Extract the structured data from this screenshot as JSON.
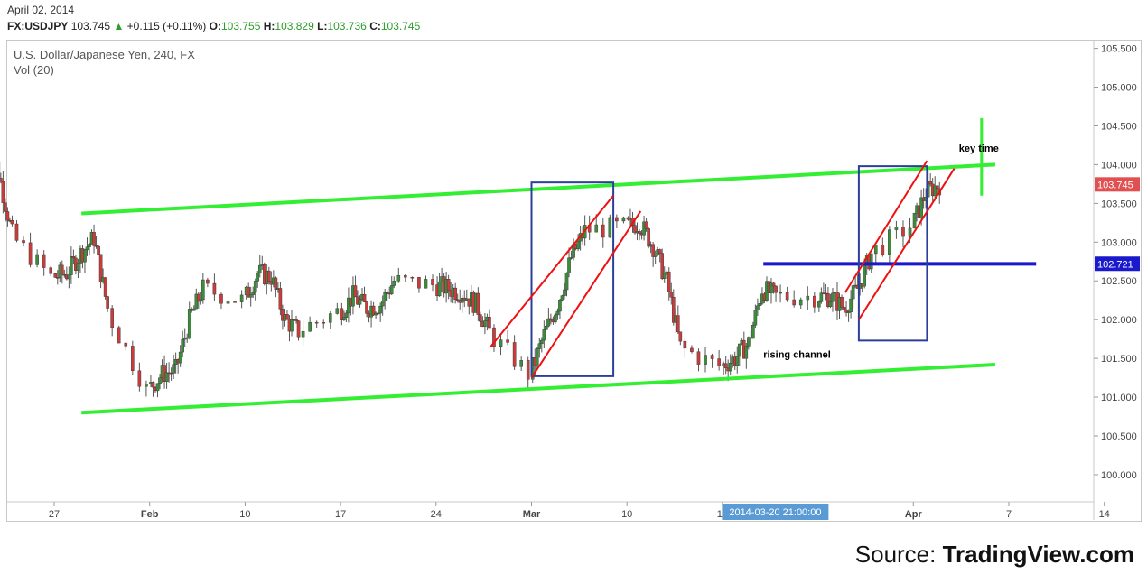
{
  "header": {
    "date": "April 02, 2014",
    "symbol": "FX:USDJPY",
    "last": "103.745",
    "change": "+0.115 (+0.11%)",
    "open_label": "O:",
    "open": "103.755",
    "high_label": "H:",
    "high": "103.829",
    "low_label": "L:",
    "low": "103.736",
    "close_label": "C:",
    "close": "103.745"
  },
  "chart_data": {
    "type": "candlestick",
    "title": "U.S. Dollar/Japanese Yen, 240, FX",
    "subtitle": "Vol (20)",
    "ylim": [
      99.65,
      105.6
    ],
    "y_ticks": [
      "105.500",
      "105.000",
      "104.500",
      "104.000",
      "103.500",
      "103.000",
      "102.500",
      "102.000",
      "101.500",
      "101.000",
      "100.500",
      "100.000"
    ],
    "x_ticks": [
      "27",
      "Feb",
      "10",
      "17",
      "24",
      "Mar",
      "10",
      "17",
      "Apr",
      "7",
      "14"
    ],
    "crosshair_date": "2014-03-20 21:00:00",
    "price_labels": [
      {
        "value": 103.745,
        "text": "103.745",
        "color": "#e05050"
      },
      {
        "value": 102.721,
        "text": "102.721",
        "color": "#1a1acc"
      }
    ],
    "close_path": [
      [
        "2014-01-22",
        104.45
      ],
      [
        "2014-01-23",
        103.9
      ],
      [
        "2014-01-24",
        103.1
      ],
      [
        "2014-01-27",
        102.55
      ],
      [
        "2014-01-28",
        102.6
      ],
      [
        "2014-01-29",
        102.85
      ],
      [
        "2014-01-30",
        103.05
      ],
      [
        "2014-01-31",
        102.15
      ],
      [
        "2014-02-03",
        101.1
      ],
      [
        "2014-02-04",
        101.3
      ],
      [
        "2014-02-05",
        101.35
      ],
      [
        "2014-02-06",
        102.0
      ],
      [
        "2014-02-07",
        102.4
      ],
      [
        "2014-02-10",
        102.25
      ],
      [
        "2014-02-11",
        102.6
      ],
      [
        "2014-02-12",
        102.55
      ],
      [
        "2014-02-13",
        102.0
      ],
      [
        "2014-02-14",
        101.85
      ],
      [
        "2014-02-17",
        102.1
      ],
      [
        "2014-02-18",
        102.3
      ],
      [
        "2014-02-19",
        102.15
      ],
      [
        "2014-02-20",
        102.2
      ],
      [
        "2014-02-21",
        102.5
      ],
      [
        "2014-02-24",
        102.45
      ],
      [
        "2014-02-25",
        102.4
      ],
      [
        "2014-02-26",
        102.35
      ],
      [
        "2014-02-27",
        102.2
      ],
      [
        "2014-02-28",
        101.85
      ],
      [
        "2014-03-03",
        101.3
      ],
      [
        "2014-03-04",
        101.8
      ],
      [
        "2014-03-05",
        102.2
      ],
      [
        "2014-03-06",
        102.8
      ],
      [
        "2014-03-07",
        103.15
      ],
      [
        "2014-03-10",
        103.2
      ],
      [
        "2014-03-11",
        103.25
      ],
      [
        "2014-03-12",
        102.95
      ],
      [
        "2014-03-13",
        102.5
      ],
      [
        "2014-03-14",
        101.65
      ],
      [
        "2014-03-17",
        101.4
      ],
      [
        "2014-03-18",
        101.5
      ],
      [
        "2014-03-19",
        101.7
      ],
      [
        "2014-03-20",
        102.4
      ],
      [
        "2014-03-21",
        102.3
      ],
      [
        "2014-03-24",
        102.3
      ],
      [
        "2014-03-25",
        102.3
      ],
      [
        "2014-03-26",
        102.15
      ],
      [
        "2014-03-27",
        102.4
      ],
      [
        "2014-03-28",
        102.85
      ],
      [
        "2014-03-31",
        103.2
      ],
      [
        "2014-04-01",
        103.65
      ],
      [
        "2014-04-02",
        103.745
      ]
    ],
    "annotations": [
      {
        "kind": "line",
        "color": "#33ee33",
        "from": [
          "2014-01-29",
          103.37
        ],
        "to": [
          "2014-04-06",
          104.0
        ]
      },
      {
        "kind": "line",
        "color": "#33ee33",
        "from": [
          "2014-01-29",
          100.8
        ],
        "to": [
          "2014-04-06",
          101.42
        ],
        "label": "rising channel"
      },
      {
        "kind": "line",
        "color": "#1a1acc",
        "from": [
          "2014-03-20",
          102.72
        ],
        "to": [
          "2014-04-09",
          102.72
        ]
      },
      {
        "kind": "vline",
        "color": "#33ee33",
        "x": "2014-04-05",
        "from": 103.6,
        "to": 104.6,
        "label": "key time"
      },
      {
        "kind": "rect",
        "color": "#2b3f9a",
        "from": [
          "2014-03-03",
          101.27
        ],
        "to": [
          "2014-03-09",
          103.77
        ]
      },
      {
        "kind": "rect",
        "color": "#2b3f9a",
        "from": [
          "2014-03-27",
          101.73
        ],
        "to": [
          "2014-04-01",
          103.98
        ]
      },
      {
        "kind": "line",
        "color": "#ee1111",
        "from": [
          "2014-02-28",
          101.65
        ],
        "to": [
          "2014-03-09",
          103.6
        ]
      },
      {
        "kind": "line",
        "color": "#ee1111",
        "from": [
          "2014-03-03",
          101.25
        ],
        "to": [
          "2014-03-11",
          103.4
        ]
      },
      {
        "kind": "line",
        "color": "#ee1111",
        "from": [
          "2014-03-26",
          102.35
        ],
        "to": [
          "2014-04-01",
          104.05
        ]
      },
      {
        "kind": "line",
        "color": "#ee1111",
        "from": [
          "2014-03-27",
          102.0
        ],
        "to": [
          "2014-04-03",
          103.95
        ]
      }
    ]
  },
  "source": {
    "prefix": "Source: ",
    "name": "TradingView.com"
  }
}
